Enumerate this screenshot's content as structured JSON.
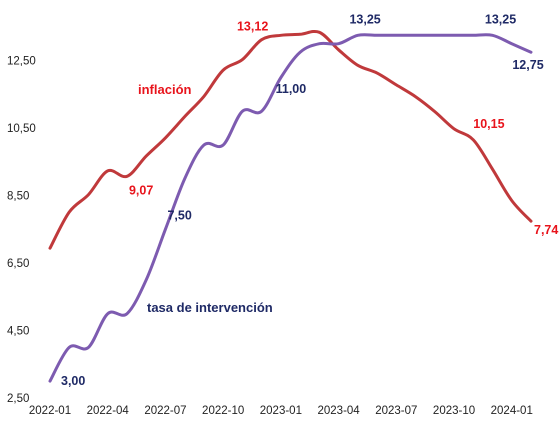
{
  "chart_data": {
    "type": "line",
    "ylim": [
      2.5,
      14.0
    ],
    "yticks": [
      "2,50",
      "4,50",
      "6,50",
      "8,50",
      "10,50",
      "12,50"
    ],
    "xticks": [
      "2022-01",
      "2022-04",
      "2022-07",
      "2022-10",
      "2023-01",
      "2023-04",
      "2023-07",
      "2023-10",
      "2024-01"
    ],
    "x": [
      "2022-01",
      "2022-02",
      "2022-03",
      "2022-04",
      "2022-05",
      "2022-06",
      "2022-07",
      "2022-08",
      "2022-09",
      "2022-10",
      "2022-11",
      "2022-12",
      "2023-01",
      "2023-02",
      "2023-03",
      "2023-04",
      "2023-05",
      "2023-06",
      "2023-07",
      "2023-08",
      "2023-09",
      "2023-10",
      "2023-11",
      "2023-12",
      "2024-01",
      "2024-02"
    ],
    "grid": false,
    "series": [
      {
        "name": "inflación",
        "color": "#c0393b",
        "values": [
          6.94,
          8.01,
          8.53,
          9.23,
          9.07,
          9.67,
          10.21,
          10.84,
          11.44,
          12.22,
          12.53,
          13.12,
          13.25,
          13.28,
          13.34,
          12.82,
          12.36,
          12.13,
          11.78,
          11.43,
          10.99,
          10.48,
          10.15,
          9.28,
          8.35,
          7.74
        ],
        "labels": [
          {
            "i": 4,
            "text": "9,07"
          },
          {
            "i": 11,
            "text": "13,12"
          },
          {
            "i": 22,
            "text": "10,15"
          },
          {
            "i": 25,
            "text": "7,74"
          }
        ]
      },
      {
        "name": "tasa de intervención",
        "color": "#7d5bb0",
        "values": [
          3.0,
          4.0,
          4.0,
          5.0,
          5.0,
          6.0,
          7.5,
          9.0,
          10.0,
          10.0,
          11.0,
          11.0,
          12.0,
          12.75,
          13.0,
          13.0,
          13.25,
          13.25,
          13.25,
          13.25,
          13.25,
          13.25,
          13.25,
          13.25,
          13.0,
          12.75
        ],
        "labels": [
          {
            "i": 0,
            "text": "3,00"
          },
          {
            "i": 6,
            "text": "7,50"
          },
          {
            "i": 11,
            "text": "11,00"
          },
          {
            "i": 17,
            "text": "13,25"
          },
          {
            "i": 23,
            "text": "13,25"
          },
          {
            "i": 25,
            "text": "12,75"
          }
        ]
      }
    ]
  }
}
